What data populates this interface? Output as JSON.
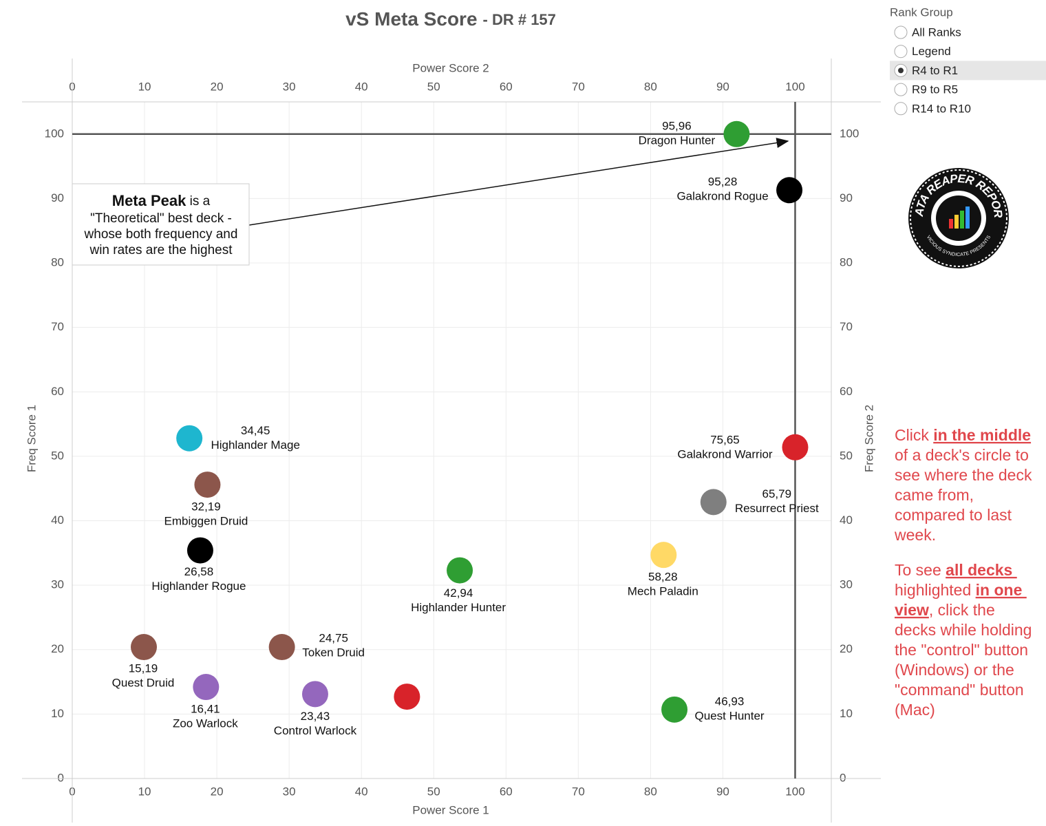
{
  "chart_data": {
    "type": "scatter",
    "title": "vS Meta Score",
    "subtitle": "- DR # 157",
    "x_label": "Power Score 1",
    "x2_label": "Power Score 2",
    "y_label": "Freq Score 1",
    "y2_label": "Freq Score 2",
    "x": [
      91.9,
      99.2,
      100,
      88.7,
      81.8,
      83.3,
      53.6,
      16.2,
      18.7,
      17.7,
      9.9,
      29.0,
      18.5,
      33.6,
      46.3
    ],
    "values": [
      100,
      91.3,
      51.4,
      42.9,
      34.7,
      10.7,
      32.3,
      52.8,
      45.6,
      35.4,
      20.4,
      20.4,
      14.2,
      13.1,
      12.7
    ],
    "point_names": [
      "Dragon Hunter",
      "Galakrond Rogue",
      "Galakrond Warrior",
      "Resurrect Priest",
      "Mech Paladin",
      "Quest Hunter",
      "Highlander Hunter",
      "Highlander Mage",
      "Embiggen Druid",
      "Highlander Rogue",
      "Quest Druid",
      "Token Druid",
      "Zoo Warlock",
      "Control Warlock",
      null
    ],
    "point_labels": [
      "95,96",
      "95,28",
      "75,65",
      "65,79",
      "58,28",
      "46,93",
      "42,94",
      "34,45",
      "32,19",
      "26,58",
      "15,19",
      "24,75",
      "16,41",
      "23,43",
      null
    ],
    "colors": [
      "#2f9e33",
      "#000000",
      "#d8232a",
      "#7f7f7f",
      "#ffd966",
      "#2f9e33",
      "#2f9e33",
      "#1eb6cf",
      "#8c564b",
      "#000000",
      "#8c564b",
      "#8c564b",
      "#9467bd",
      "#9467bd",
      "#d8232a"
    ],
    "xlim": [
      0,
      105
    ],
    "xticks": [
      0,
      10,
      20,
      30,
      40,
      50,
      60,
      70,
      80,
      90,
      100
    ],
    "x2lim": [
      0,
      105
    ],
    "x2ticks": [
      0,
      10,
      20,
      30,
      40,
      50,
      60,
      70,
      80,
      90,
      100
    ],
    "ylim": [
      0,
      105
    ],
    "yticks": [
      0,
      10,
      20,
      30,
      40,
      50,
      60,
      70,
      80,
      90,
      100
    ],
    "y2lim": [
      0,
      105
    ],
    "y2ticks": [
      0,
      10,
      20,
      30,
      40,
      50,
      60,
      70,
      80,
      90,
      100
    ],
    "grid": true,
    "reference_lines": {
      "x": 100,
      "y": 100
    },
    "annotation": {
      "bold": "Meta Peak",
      "lines": [
        " is a",
        "\"Theoretical\" best deck -",
        "whose both frequency and",
        "win rates are the highest"
      ]
    }
  },
  "rank_group": {
    "title": "Rank Group",
    "options": [
      "All Ranks",
      "Legend",
      "R4 to R1",
      "R9 to R5",
      "R14 to R10"
    ],
    "selected": 2
  },
  "logo": {
    "title": "DATA REAPER REPORT",
    "subtitle": "VICIOUS SYNDICATE PRESENTS"
  },
  "instructions": [
    [
      [
        {
          "text": "Click ",
          "strong": false
        },
        {
          "text": "in the middle",
          "strong": true
        }
      ],
      [
        {
          "text": "of a deck's circle to",
          "strong": false
        }
      ],
      [
        {
          "text": "see where the deck",
          "strong": false
        }
      ],
      [
        {
          "text": "came from,",
          "strong": false
        }
      ],
      [
        {
          "text": "compared to last",
          "strong": false
        }
      ],
      [
        {
          "text": "week.",
          "strong": false
        }
      ]
    ],
    [
      [
        {
          "text": "To see ",
          "strong": false
        },
        {
          "text": "all decks ",
          "strong": true
        }
      ],
      [
        {
          "text": "highlighted ",
          "strong": false
        },
        {
          "text": "in one ",
          "strong": true
        }
      ],
      [
        {
          "text": "view",
          "strong": true
        },
        {
          "text": ", click the",
          "strong": false
        }
      ],
      [
        {
          "text": "decks while holding",
          "strong": false
        }
      ],
      [
        {
          "text": "the \"control\" button",
          "strong": false
        }
      ],
      [
        {
          "text": "(Windows) or the",
          "strong": false
        }
      ],
      [
        {
          "text": "\"command\" button",
          "strong": false
        }
      ],
      [
        {
          "text": "(Mac)",
          "strong": false
        }
      ]
    ]
  ]
}
